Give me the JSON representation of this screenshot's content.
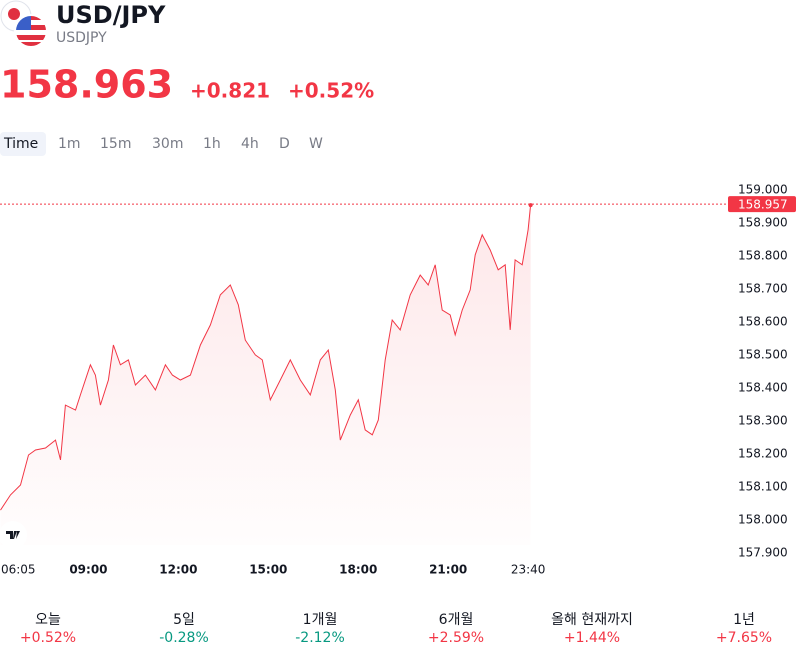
{
  "header": {
    "title": "USD/JPY",
    "symbol": "USDJPY"
  },
  "quote": {
    "price": 158.963,
    "change": "+0.821",
    "change_percent": "+0.52%",
    "color": "#f23645"
  },
  "timeframes": {
    "items": [
      "Time",
      "1m",
      "15m",
      "30m",
      "1h",
      "4h",
      "D",
      "W"
    ],
    "selected": 0
  },
  "chart_data": {
    "type": "area",
    "color": "#f23645",
    "x": [
      6.067,
      6.4,
      6.733,
      7.0,
      7.233,
      7.567,
      7.9,
      8.067,
      8.233,
      8.567,
      8.733,
      9.067,
      9.233,
      9.4,
      9.667,
      9.833,
      10.067,
      10.333,
      10.567,
      10.9,
      11.233,
      11.567,
      11.8,
      12.067,
      12.4,
      12.733,
      13.067,
      13.4,
      13.733,
      14.0,
      14.233,
      14.567,
      14.8,
      15.067,
      15.4,
      15.733,
      16.067,
      16.4,
      16.733,
      17.0,
      17.233,
      17.4,
      17.733,
      18.0,
      18.233,
      18.467,
      18.667,
      18.9,
      19.133,
      19.4,
      19.733,
      20.067,
      20.333,
      20.567,
      20.8,
      21.067,
      21.233,
      21.467,
      21.733,
      21.9,
      22.133,
      22.4,
      22.667,
      22.9,
      23.067,
      23.233,
      23.467,
      23.667,
      23.75
    ],
    "values": [
      158.03,
      158.076,
      158.106,
      158.197,
      158.212,
      158.218,
      158.242,
      158.182,
      158.348,
      158.333,
      158.379,
      158.47,
      158.439,
      158.348,
      158.424,
      158.53,
      158.47,
      158.485,
      158.409,
      158.439,
      158.394,
      158.47,
      158.439,
      158.424,
      158.439,
      158.53,
      158.591,
      158.682,
      158.712,
      158.652,
      158.545,
      158.5,
      158.485,
      158.364,
      158.424,
      158.485,
      158.424,
      158.379,
      158.485,
      158.515,
      158.394,
      158.242,
      158.318,
      158.364,
      158.273,
      158.258,
      158.303,
      158.485,
      158.606,
      158.576,
      158.682,
      158.742,
      158.712,
      158.773,
      158.636,
      158.621,
      158.561,
      158.636,
      158.697,
      158.803,
      158.864,
      158.818,
      158.758,
      158.773,
      158.576,
      158.788,
      158.773,
      158.879,
      158.954
    ],
    "xlim": [
      6.05,
      30.4
    ],
    "ylim": [
      157.9,
      159.03
    ],
    "xticks": [
      {
        "value": 6.083,
        "label": "06:05"
      },
      {
        "value": 9,
        "label": "09:00"
      },
      {
        "value": 12,
        "label": "12:00"
      },
      {
        "value": 15,
        "label": "15:00"
      },
      {
        "value": 18,
        "label": "18:00"
      },
      {
        "value": 21,
        "label": "21:00"
      },
      {
        "value": 23.667,
        "label": "23:40"
      }
    ],
    "yticks": [
      {
        "value": 157.9,
        "label": "157.900"
      },
      {
        "value": 158,
        "label": "158.000"
      },
      {
        "value": 158.1,
        "label": "158.100"
      },
      {
        "value": 158.2,
        "label": "158.200"
      },
      {
        "value": 158.3,
        "label": "158.300"
      },
      {
        "value": 158.4,
        "label": "158.400"
      },
      {
        "value": 158.5,
        "label": "158.500"
      },
      {
        "value": 158.6,
        "label": "158.600"
      },
      {
        "value": 158.7,
        "label": "158.700"
      },
      {
        "value": 158.8,
        "label": "158.800"
      },
      {
        "value": 158.9,
        "label": "158.900"
      },
      {
        "value": 159,
        "label": "159.000"
      }
    ],
    "last_price": 158.957
  },
  "stats": [
    {
      "label": "오늘",
      "value": "+0.52%",
      "color": "#f23645"
    },
    {
      "label": "5일",
      "value": "-0.28%",
      "color": "#089981"
    },
    {
      "label": "1개월",
      "value": "-2.12%",
      "color": "#089981"
    },
    {
      "label": "6개월",
      "value": "+2.59%",
      "color": "#f23645"
    },
    {
      "label": "올해 현재까지",
      "value": "+1.44%",
      "color": "#f23645"
    },
    {
      "label": "1년",
      "value": "+7.65%",
      "color": "#f23645"
    }
  ]
}
